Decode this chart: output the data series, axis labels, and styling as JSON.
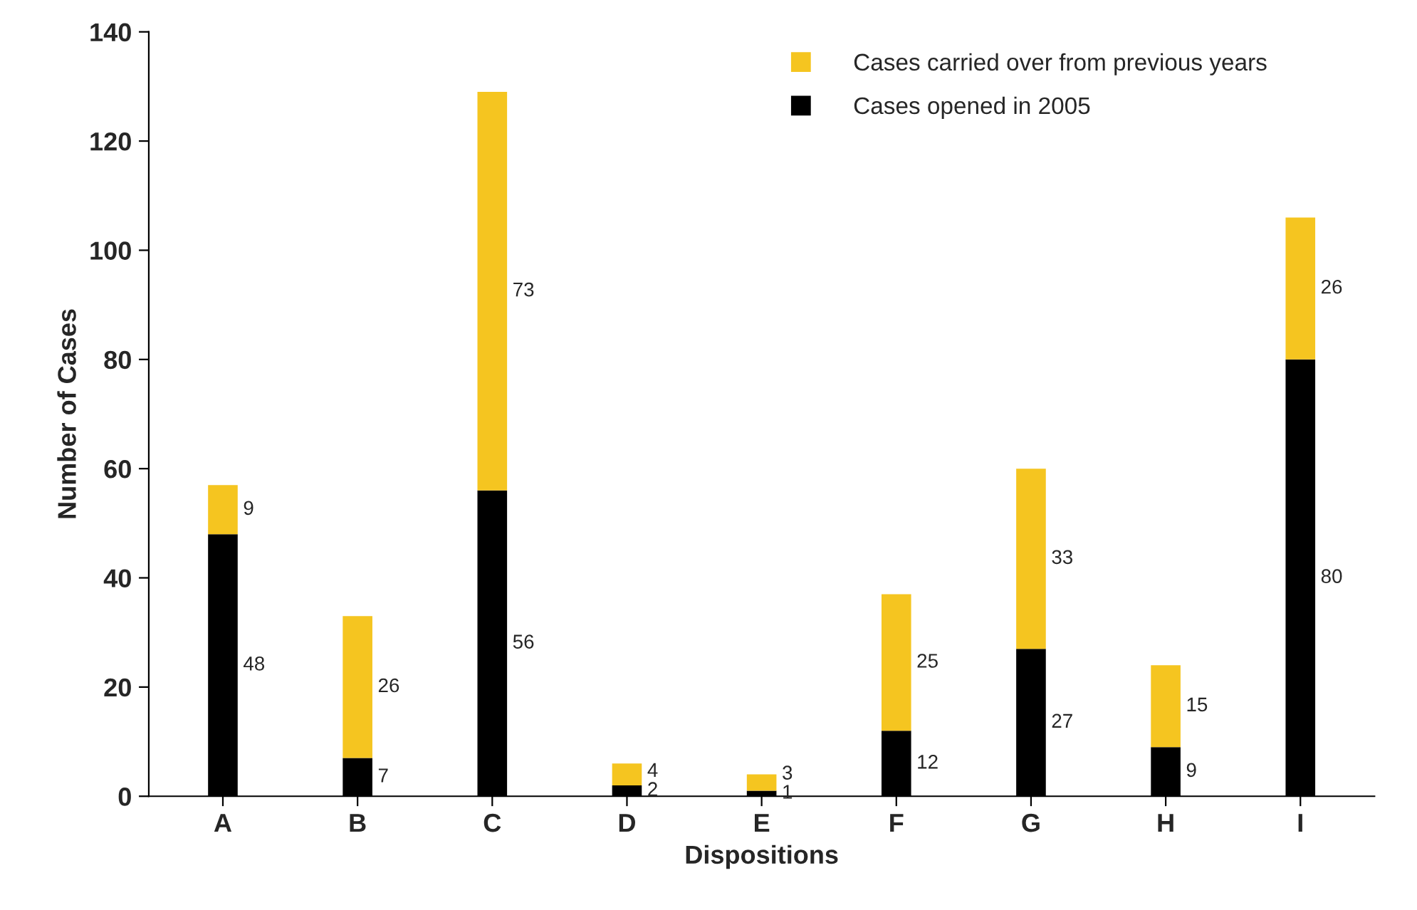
{
  "chart_data": {
    "type": "bar",
    "stacked": true,
    "xlabel": "Dispositions",
    "ylabel": "Number of Cases",
    "categories": [
      "A",
      "B",
      "C",
      "D",
      "E",
      "F",
      "G",
      "H",
      "I"
    ],
    "series": [
      {
        "name": "Cases opened in 2005",
        "color": "#000000",
        "values": [
          48,
          7,
          56,
          2,
          1,
          12,
          27,
          9,
          80
        ]
      },
      {
        "name": "Cases carried over from previous years",
        "color": "#f5c520",
        "values": [
          9,
          26,
          73,
          4,
          3,
          25,
          33,
          15,
          26
        ]
      }
    ],
    "ylim": [
      0,
      140
    ],
    "yticks": [
      0,
      20,
      40,
      60,
      80,
      100,
      120,
      140
    ],
    "grid": false,
    "legend": "top right",
    "data_labels": true
  }
}
